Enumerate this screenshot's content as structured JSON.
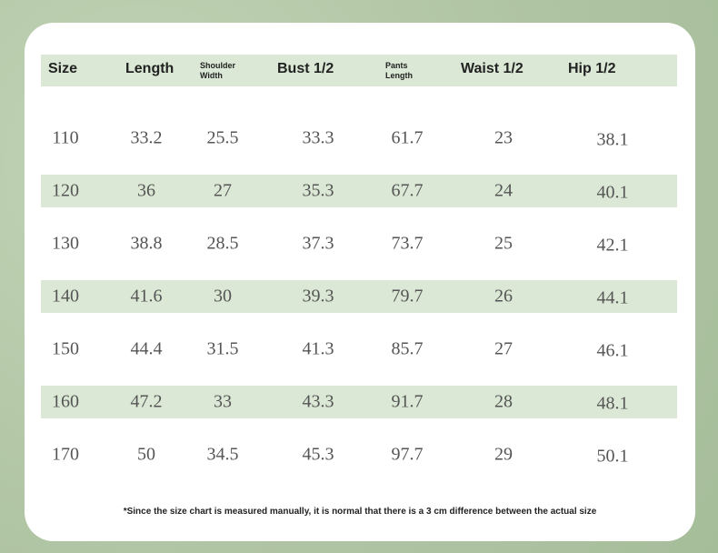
{
  "table": {
    "header": [
      "Size",
      "Length",
      "Shoulder Width",
      "Bust 1/2",
      "Pants Length",
      "Waist 1/2",
      "Hip 1/2"
    ],
    "rows": [
      [
        "110",
        "33.2",
        "25.5",
        "33.3",
        "61.7",
        "23",
        "38.1"
      ],
      [
        "120",
        "36",
        "27",
        "35.3",
        "67.7",
        "24",
        "40.1"
      ],
      [
        "130",
        "38.8",
        "28.5",
        "37.3",
        "73.7",
        "25",
        "42.1"
      ],
      [
        "140",
        "41.6",
        "30",
        "39.3",
        "79.7",
        "26",
        "44.1"
      ],
      [
        "150",
        "44.4",
        "31.5",
        "41.3",
        "85.7",
        "27",
        "46.1"
      ],
      [
        "160",
        "47.2",
        "33",
        "43.3",
        "91.7",
        "28",
        "48.1"
      ],
      [
        "170",
        "50",
        "34.5",
        "45.3",
        "97.7",
        "29",
        "50.1"
      ]
    ]
  },
  "footnote": "*Since the size chart is measured manually, it is normal that there is a 3 cm difference between the actual size"
}
